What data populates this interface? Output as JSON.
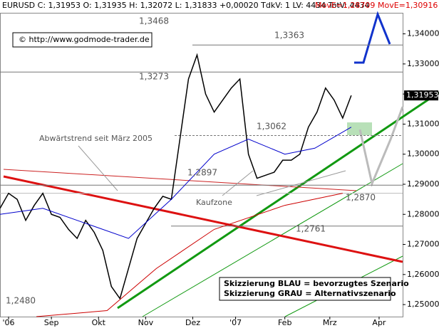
{
  "chart_data": {
    "type": "line",
    "header": {
      "quote": "EURUSD C: 1,31953 O: 1,31935 H: 1,32072 L: 1,31833 +0,00020 TdkV: 1 LV: 4434 TotV: 4434",
      "ma_red": "MovE=1,28709",
      "ma_blue": "MovE=1,30916"
    },
    "copyright": "© http://www.godmode-trader.de",
    "annotations": {
      "downtrend": "Abwärtstrend seit März 2005",
      "buy_zone": "Kaufzone",
      "blue": "Skizzierung BLAU = bevorzugtes Szenario",
      "grey": "Skizzierung GRAU = Alternativszenario"
    },
    "xlim": [
      0,
      188
    ],
    "xticks": [
      {
        "value": 4,
        "label": "'06"
      },
      {
        "value": 24,
        "label": "Sep"
      },
      {
        "value": 46,
        "label": "Okt"
      },
      {
        "value": 68,
        "label": "Nov"
      },
      {
        "value": 90,
        "label": "Dez"
      },
      {
        "value": 110,
        "label": "'07"
      },
      {
        "value": 133,
        "label": "Feb"
      },
      {
        "value": 154,
        "label": "Mrz"
      },
      {
        "value": 177,
        "label": "Apr"
      }
    ],
    "ylim": [
      1.246,
      1.347
    ],
    "yticks": [
      {
        "value": 1.25,
        "label": "1,25000"
      },
      {
        "value": 1.26,
        "label": "1,26000"
      },
      {
        "value": 1.27,
        "label": "1,27000"
      },
      {
        "value": 1.28,
        "label": "1,28000"
      },
      {
        "value": 1.29,
        "label": "1,29000"
      },
      {
        "value": 1.3,
        "label": "1,30000"
      },
      {
        "value": 1.31,
        "label": "1,31000"
      },
      {
        "value": 1.32,
        "label": "1,32000"
      },
      {
        "value": 1.33,
        "label": "1,33000"
      },
      {
        "value": 1.34,
        "label": "1,34000"
      }
    ],
    "levels": [
      {
        "value": 1.3468,
        "label": "1,3468"
      },
      {
        "value": 1.3363,
        "label": "1,3363"
      },
      {
        "value": 1.3273,
        "label": "1,3273"
      },
      {
        "value": 1.3062,
        "label": "1,3062"
      },
      {
        "value": 1.2897,
        "label": "1,2897"
      },
      {
        "value": 1.287,
        "label": "1,2870"
      },
      {
        "value": 1.2761,
        "label": "1,2761"
      },
      {
        "value": 1.248,
        "label": "1,2480"
      }
    ],
    "last": {
      "value": 1.31953,
      "label": "1,31953"
    },
    "series": [
      {
        "color": "#000000",
        "x": [
          0,
          4,
          8,
          12,
          16,
          20,
          24,
          28,
          32,
          36,
          40,
          44,
          48,
          52,
          56,
          60,
          64,
          68,
          72,
          76,
          80,
          84,
          88,
          92,
          96,
          100,
          104,
          108,
          112,
          116,
          120,
          124,
          128,
          132,
          136,
          140,
          144,
          148,
          152,
          156,
          160,
          164
        ],
        "values": [
          1.282,
          1.287,
          1.285,
          1.278,
          1.283,
          1.287,
          1.28,
          1.279,
          1.275,
          1.272,
          1.278,
          1.274,
          1.268,
          1.256,
          1.252,
          1.262,
          1.272,
          1.277,
          1.282,
          1.286,
          1.285,
          1.305,
          1.325,
          1.333,
          1.32,
          1.314,
          1.318,
          1.322,
          1.325,
          1.3,
          1.292,
          1.293,
          1.294,
          1.298,
          1.298,
          1.3,
          1.309,
          1.314,
          1.322,
          1.318,
          1.312,
          1.31953
        ]
      },
      {
        "color": "#0000cc",
        "x": [
          0,
          20,
          40,
          60,
          80,
          100,
          116,
          133,
          147,
          164
        ],
        "values": [
          1.28,
          1.282,
          1.277,
          1.272,
          1.285,
          1.3,
          1.305,
          1.3,
          1.302,
          1.309
        ]
      },
      {
        "color": "#cc0000",
        "x": [
          17,
          50,
          73,
          100,
          133,
          160
        ],
        "values": [
          1.246,
          1.248,
          1.262,
          1.275,
          1.283,
          1.287
        ]
      }
    ]
  }
}
